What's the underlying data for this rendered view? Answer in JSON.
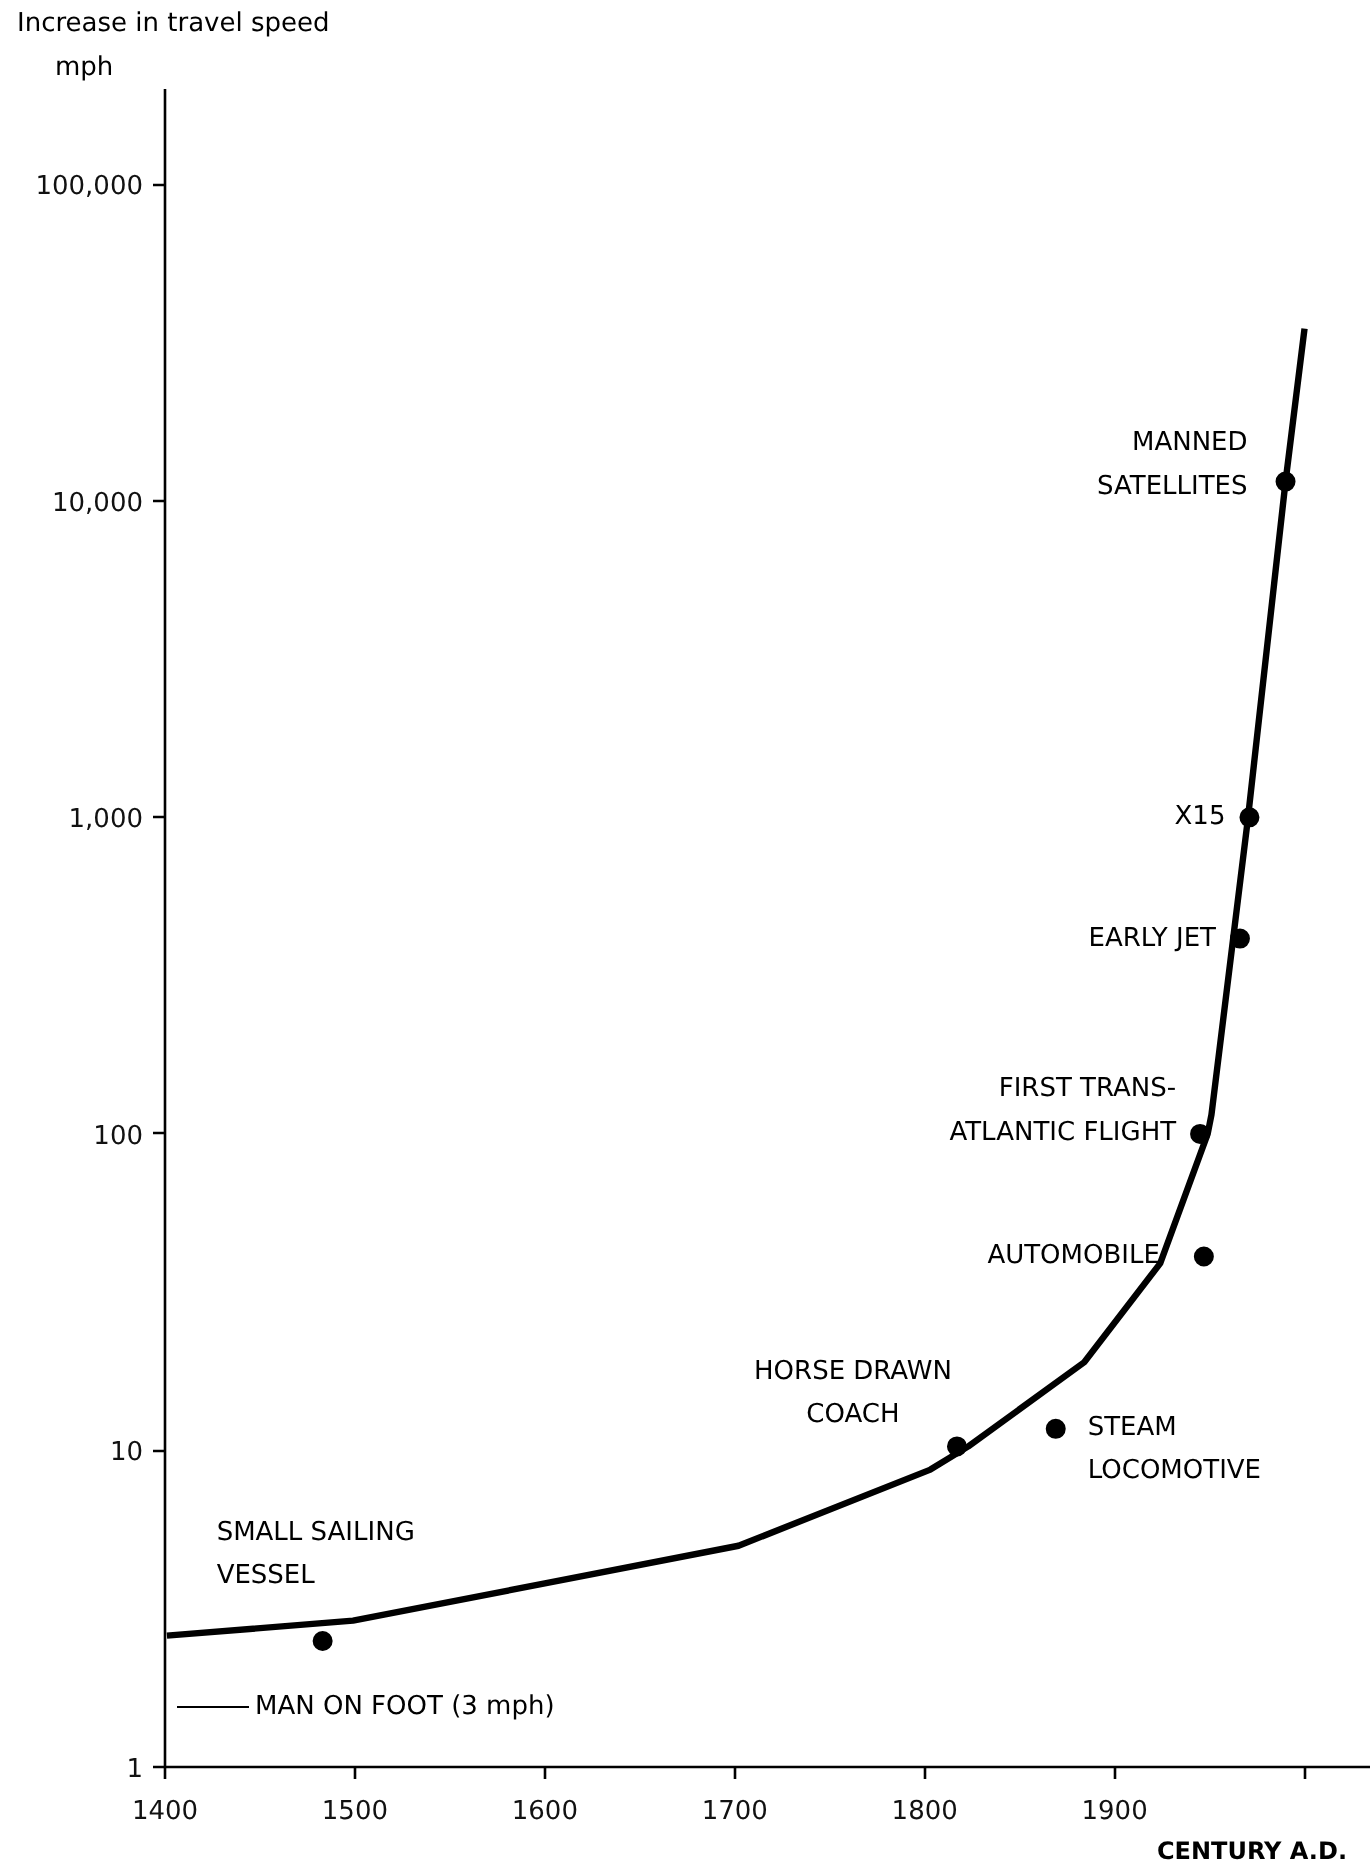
{
  "chart_data": {
    "type": "line",
    "ylabel": "Increase in travel speed",
    "xlabel": "CENTURY A.D.",
    "log": "y",
    "grid": false,
    "xlim": [
      1400,
      2035
    ],
    "ylim": [
      1,
      200000
    ],
    "xticks": [
      1400,
      1500,
      1600,
      1700,
      1800,
      1900,
      {
        "value": 2000,
        "label": null
      }
    ],
    "yticks": [
      1,
      10,
      100,
      {
        "value": 1000,
        "label": "1,000"
      },
      {
        "value": 10000,
        "label": "10,000"
      },
      {
        "value": 100000,
        "label": "100,000"
      }
    ],
    "series": [
      {
        "color": "#000000",
        "marker": "none",
        "x": [
          1401,
          1499,
          1600,
          1702,
          1803,
          1823,
          1884,
          1924,
          1949,
          1951,
          1970,
          1990,
          2000
        ],
        "values": [
          2.6,
          2.9,
          3.8,
          5.0,
          8.7,
          10.3,
          19,
          39,
          100,
          115,
          970,
          11500,
          35000
        ]
      },
      {
        "type": "scatter",
        "color": "#000000",
        "marker": "circle",
        "x": [
          1483,
          1817,
          1869,
          1947,
          1945,
          1966,
          1971,
          1990
        ],
        "values": [
          2.5,
          10.3,
          11.7,
          41,
          100,
          414,
          1000,
          11500
        ]
      }
    ],
    "annotations": [
      {
        "text": "SMALL SAILING\nVESSEL",
        "x": 1483,
        "y": 2.5
      },
      {
        "text": "HORSE DRAWN\nCOACH",
        "x": 1817,
        "y": 10.3
      },
      {
        "text": "STEAM\nLOCOMOTIVE",
        "x": 1869,
        "y": 11.7
      },
      {
        "text": "AUTOMOBILE",
        "x": 1947,
        "y": 41
      },
      {
        "text": "FIRST TRANS-\nATLANTIC FLIGHT",
        "x": 1945,
        "y": 100
      },
      {
        "text": "EARLY JET",
        "x": 1966,
        "y": 414
      },
      {
        "text": "X15",
        "x": 1971,
        "y": 1000
      },
      {
        "text": "MANNED\nSATELLITES",
        "x": 1990,
        "y": 11500
      },
      "MAN ON FOOT (3 mph)",
      "mph"
    ]
  }
}
